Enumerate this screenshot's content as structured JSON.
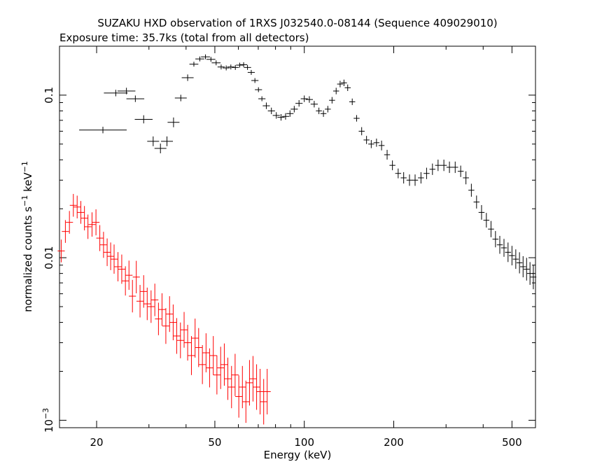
{
  "chart_data": {
    "type": "scatter",
    "title": "SUZAKU HXD observation of 1RXS J032540.0-08144 (Sequence 409029010)",
    "subtitle": "Exposure time: 35.7ks (total from all detectors)",
    "xlabel": "Energy (keV)",
    "ylabel": "normalized counts s⁻¹ keV⁻¹",
    "ylabel_parts": {
      "a": "normalized counts s",
      "sup1": "−1",
      "b": " keV",
      "sup2": "−1"
    },
    "xscale": "log",
    "yscale": "log",
    "xlim": [
      15,
      600
    ],
    "ylim": [
      0.0009,
      0.2
    ],
    "x_ticks": [
      {
        "value": 20,
        "label": "20"
      },
      {
        "value": 50,
        "label": "50"
      },
      {
        "value": 100,
        "label": "100"
      },
      {
        "value": 200,
        "label": "200"
      },
      {
        "value": 500,
        "label": "500"
      }
    ],
    "y_ticks": [
      {
        "value": 0.1,
        "label": "0.1"
      },
      {
        "value": 0.01,
        "label": "0.01"
      },
      {
        "value": 0.001,
        "label": "10",
        "sup": "−3"
      }
    ],
    "series": [
      {
        "color": "#000000",
        "x": [
          21.0,
          23.2,
          25.2,
          27.0,
          28.8,
          31.0,
          32.8,
          34.5,
          36.3,
          38.4,
          40.5,
          42.5,
          44.5,
          46.5,
          48.5,
          50.5,
          52.5,
          54.6,
          56.6,
          58.6,
          60.6,
          62.5,
          64.4,
          66.3,
          68.2,
          70.1,
          72.0,
          74.5,
          77.5,
          80.5,
          83.5,
          86.5,
          89.5,
          92.5,
          96.0,
          100.0,
          104.0,
          108.0,
          112.0,
          116.0,
          120.0,
          124.0,
          128.0,
          132.0,
          136.0,
          140.0,
          145.0,
          150.0,
          156.0,
          162.0,
          168.0,
          175.0,
          182.0,
          190.0,
          198.0,
          207.0,
          216.0,
          226.0,
          236.0,
          247.0,
          258.0,
          270.0,
          282.0,
          295.0,
          308.0,
          322.0,
          336.0,
          350.0,
          365.0,
          380.0,
          395.0,
          410.0,
          425.0,
          440.0,
          455.0,
          470.0,
          485.0,
          500.0,
          515.0,
          530.0,
          545.0,
          560.0,
          575.0,
          590.0
        ],
        "y": [
          0.061,
          0.103,
          0.106,
          0.095,
          0.071,
          0.052,
          0.047,
          0.052,
          0.068,
          0.096,
          0.128,
          0.155,
          0.167,
          0.172,
          0.166,
          0.158,
          0.149,
          0.147,
          0.149,
          0.148,
          0.153,
          0.154,
          0.148,
          0.138,
          0.123,
          0.108,
          0.095,
          0.086,
          0.08,
          0.075,
          0.073,
          0.074,
          0.077,
          0.082,
          0.089,
          0.095,
          0.094,
          0.088,
          0.08,
          0.077,
          0.082,
          0.093,
          0.106,
          0.117,
          0.119,
          0.111,
          0.091,
          0.072,
          0.06,
          0.053,
          0.05,
          0.051,
          0.049,
          0.043,
          0.037,
          0.033,
          0.031,
          0.03,
          0.03,
          0.031,
          0.033,
          0.035,
          0.037,
          0.037,
          0.036,
          0.036,
          0.034,
          0.031,
          0.026,
          0.022,
          0.019,
          0.017,
          0.015,
          0.013,
          0.012,
          0.0115,
          0.0108,
          0.0103,
          0.0098,
          0.0093,
          0.0088,
          0.0085,
          0.008,
          0.0076
        ],
        "xerr": [
          0.08,
          0.04,
          0.03,
          0.03,
          0.03,
          0.02,
          0.02,
          0.02,
          0.02,
          0.02,
          0.02,
          0.015,
          0.015,
          0.015,
          0.015,
          0.015,
          0.012,
          0.012,
          0.012,
          0.012,
          0.012,
          0.012,
          0.012,
          0.012,
          0.012,
          0.012,
          0.012,
          0.012,
          0.012,
          0.012,
          0.012,
          0.012,
          0.012,
          0.012,
          0.012,
          0.012,
          0.012,
          0.012,
          0.01,
          0.01,
          0.01,
          0.01,
          0.01,
          0.01,
          0.01,
          0.01,
          0.01,
          0.01,
          0.01,
          0.01,
          0.01,
          0.01,
          0.01,
          0.01,
          0.01,
          0.01,
          0.01,
          0.01,
          0.01,
          0.01,
          0.01,
          0.01,
          0.01,
          0.01,
          0.01,
          0.01,
          0.01,
          0.01,
          0.01,
          0.01,
          0.01,
          0.01,
          0.01,
          0.01,
          0.01,
          0.01,
          0.01,
          0.01,
          0.01,
          0.01,
          0.01,
          0.01,
          0.01,
          0.01
        ],
        "yerr": [
          0.02,
          0.02,
          0.02,
          0.02,
          0.025,
          0.03,
          0.03,
          0.03,
          0.03,
          0.02,
          0.02,
          0.015,
          0.015,
          0.015,
          0.015,
          0.015,
          0.015,
          0.015,
          0.015,
          0.015,
          0.015,
          0.015,
          0.015,
          0.015,
          0.015,
          0.015,
          0.015,
          0.02,
          0.02,
          0.02,
          0.02,
          0.02,
          0.02,
          0.02,
          0.02,
          0.02,
          0.02,
          0.02,
          0.02,
          0.02,
          0.02,
          0.02,
          0.02,
          0.02,
          0.02,
          0.02,
          0.02,
          0.02,
          0.025,
          0.025,
          0.025,
          0.025,
          0.03,
          0.03,
          0.03,
          0.03,
          0.035,
          0.035,
          0.035,
          0.035,
          0.035,
          0.035,
          0.035,
          0.035,
          0.035,
          0.035,
          0.035,
          0.04,
          0.04,
          0.04,
          0.045,
          0.045,
          0.05,
          0.05,
          0.055,
          0.055,
          0.06,
          0.06,
          0.06,
          0.065,
          0.065,
          0.07,
          0.07,
          0.075
        ]
      },
      {
        "color": "#ff0000",
        "x": [
          15.2,
          15.7,
          16.2,
          16.7,
          17.2,
          17.7,
          18.2,
          18.7,
          19.3,
          19.9,
          20.5,
          21.1,
          21.7,
          22.3,
          22.9,
          23.6,
          24.3,
          25.0,
          25.7,
          26.4,
          27.2,
          28.0,
          28.8,
          29.6,
          30.5,
          31.4,
          32.3,
          33.2,
          34.2,
          35.2,
          36.2,
          37.2,
          38.3,
          39.4,
          40.5,
          41.7,
          42.9,
          44.1,
          45.4,
          46.7,
          48.0,
          49.4,
          50.8,
          52.3,
          53.8,
          55.3,
          56.9,
          58.5,
          60.2,
          61.9,
          63.6,
          65.4,
          67.2,
          69.1,
          71.0,
          73.0,
          75.0
        ],
        "y": [
          0.011,
          0.0145,
          0.0165,
          0.021,
          0.0205,
          0.019,
          0.0175,
          0.0155,
          0.016,
          0.0165,
          0.0132,
          0.012,
          0.0108,
          0.0102,
          0.0098,
          0.0088,
          0.0085,
          0.0072,
          0.0078,
          0.0058,
          0.0076,
          0.0054,
          0.0062,
          0.0052,
          0.005,
          0.0055,
          0.0042,
          0.0048,
          0.0038,
          0.0045,
          0.004,
          0.0033,
          0.0031,
          0.0036,
          0.003,
          0.0025,
          0.0032,
          0.0028,
          0.0022,
          0.0026,
          0.0021,
          0.0025,
          0.0019,
          0.0021,
          0.0022,
          0.0018,
          0.0016,
          0.0019,
          0.0014,
          0.0016,
          0.0013,
          0.0017,
          0.0018,
          0.0016,
          0.0015,
          0.0013,
          0.0015
        ],
        "xerr": [
          0.012,
          0.012,
          0.012,
          0.012,
          0.012,
          0.012,
          0.012,
          0.012,
          0.012,
          0.012,
          0.012,
          0.012,
          0.012,
          0.012,
          0.012,
          0.012,
          0.012,
          0.012,
          0.012,
          0.012,
          0.012,
          0.012,
          0.012,
          0.012,
          0.012,
          0.012,
          0.012,
          0.012,
          0.012,
          0.012,
          0.012,
          0.012,
          0.012,
          0.012,
          0.012,
          0.012,
          0.012,
          0.012,
          0.012,
          0.012,
          0.012,
          0.012,
          0.012,
          0.012,
          0.012,
          0.012,
          0.012,
          0.012,
          0.012,
          0.012,
          0.012,
          0.012,
          0.012,
          0.012,
          0.012,
          0.012,
          0.012
        ],
        "yerr": [
          0.07,
          0.07,
          0.07,
          0.07,
          0.07,
          0.07,
          0.075,
          0.075,
          0.075,
          0.08,
          0.08,
          0.08,
          0.085,
          0.085,
          0.09,
          0.09,
          0.09,
          0.09,
          0.09,
          0.1,
          0.1,
          0.1,
          0.1,
          0.1,
          0.1,
          0.1,
          0.1,
          0.1,
          0.11,
          0.11,
          0.11,
          0.11,
          0.11,
          0.11,
          0.11,
          0.12,
          0.12,
          0.12,
          0.12,
          0.12,
          0.12,
          0.12,
          0.12,
          0.13,
          0.13,
          0.13,
          0.13,
          0.13,
          0.13,
          0.13,
          0.13,
          0.14,
          0.14,
          0.14,
          0.14,
          0.14,
          0.14
        ]
      }
    ]
  }
}
